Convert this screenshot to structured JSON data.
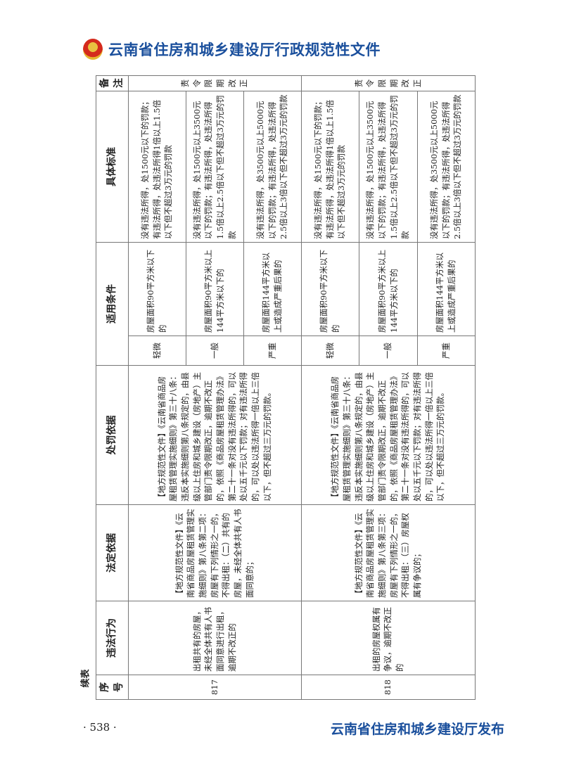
{
  "header": {
    "title": "云南省住房和城乡建设厅行政规范性文件",
    "emblem": "national-emblem"
  },
  "continued_label": "续表",
  "table": {
    "headers": [
      "序号",
      "违法行为",
      "法定依据",
      "处罚依据",
      "适用条件",
      "具体标准",
      "备注"
    ],
    "rows": [
      {
        "no": "817",
        "violation": "出租共有的房屋，未经全体共有人书面同意进行出租，逾期不改正的",
        "legal_basis": "【地方规范性文件】《云南省商品房屋租赁管理实施细则》第八条第二项：房屋有下列情形之一的，不得出租：（二）共有的房屋，未经全体共有人书面同意的；",
        "penalty_basis": "【地方规范性文件】《云南省商品房屋租赁管理实施细则》第三十八条：违反本实施细则第八条规定的，由县级以上住房和城乡建设（房地产）主管部门责令限期改正，逾期不改正的，依照《商品房屋租赁管理办法》第二十一条对没有违法所得的，可以处以五千元以下罚款；对有违法所得的，可以处以违法所得一倍以上三倍以下，但不超过三万元的罚款。",
        "levels": [
          {
            "level": "轻微",
            "condition": "房屋面积90平方米以下的",
            "standard": "没有违法所得，处1500元以下的罚款；有违法所得，处违法所得1倍以上1.5倍以下但不超过3万元的罚款"
          },
          {
            "level": "一般",
            "condition": "房屋面积90平方米以上144平方米以下的",
            "standard": "没有违法所得，处1500元以上3500元以下的罚款；有违法所得，处违法所得1.5倍以上2.5倍以下但不超过3万元的罚款"
          },
          {
            "level": "严重",
            "condition": "房屋面积144平方米以上或造成严重后果的",
            "standard": "没有违法所得，处3500元以上5000元以下的罚款；有违法所得，处违法所得2.5倍以上3倍以下但不超过3万元的罚款"
          }
        ],
        "remark": "责令限期改正"
      },
      {
        "no": "818",
        "violation": "出租的房屋权属有争议，逾期不改正的",
        "legal_basis": "【地方规范性文件】《云南省商品房屋租赁管理实施细则》第八条第三项：房屋有下列情形之一的，不得出租：（三）房屋权属有争议的；",
        "penalty_basis": "【地方规范性文件】《云南省商品房屋租赁管理实施细则》第三十八条：违反本实施细则第八条规定的，由县级以上住房和城乡建设（房地产）主管部门责令限期改正，逾期不改正的，依照《商品房屋租赁管理办法》第二十一条对没有违法所得的，可以处以五千元以下罚款；对有违法所得的，可以处以违法所得一倍以上三倍以下，但不超过三万元的罚款。",
        "levels": [
          {
            "level": "轻微",
            "condition": "房屋面积90平方米以下的",
            "standard": "没有违法所得，处1500元以下的罚款；有违法所得，处违法所得1倍以上1.5倍以下但不超过3万元的罚款"
          },
          {
            "level": "一般",
            "condition": "房屋面积90平方米以上144平方米以下的",
            "standard": "没有违法所得，处1500元以上3500元以下的罚款；有违法所得，处违法所得1.5倍以上2.5倍以下但不超过3万元的罚款"
          },
          {
            "level": "严重",
            "condition": "房屋面积144平方米以上或造成严重后果的",
            "standard": "没有违法所得，处3500元以上5000元以下的罚款；有违法所得，处违法所得2.5倍以上3倍以下但不超过3万元的罚款"
          }
        ],
        "remark": "责令限期改正"
      }
    ]
  },
  "footer": {
    "page_number": "· 538 ·",
    "publisher": "云南省住房和城乡建设厅发布"
  }
}
